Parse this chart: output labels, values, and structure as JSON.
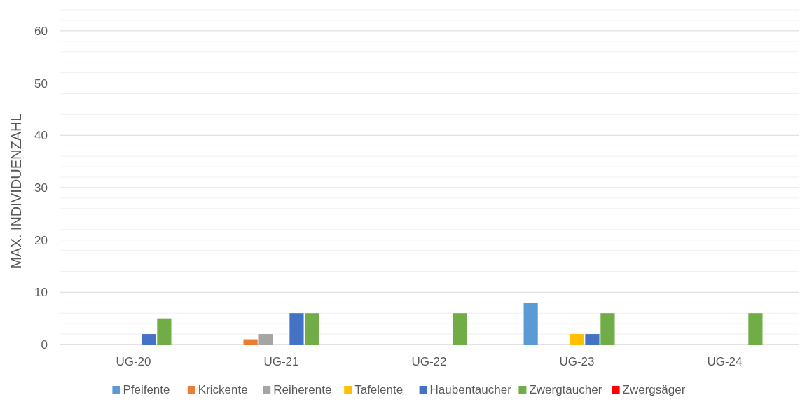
{
  "chart_data": {
    "type": "bar",
    "ylabel": "MAX. INDIVIDUENZAHL",
    "categories": [
      "UG-20",
      "UG-21",
      "UG-22",
      "UG-23",
      "UG-24"
    ],
    "series": [
      {
        "name": "Pfeifente",
        "color": "#5b9bd5",
        "values": [
          0,
          0,
          0,
          8,
          0
        ]
      },
      {
        "name": "Krickente",
        "color": "#ed7d31",
        "values": [
          0,
          1,
          0,
          0,
          0
        ]
      },
      {
        "name": "Reiherente",
        "color": "#a5a5a5",
        "values": [
          0,
          2,
          0,
          0,
          0
        ]
      },
      {
        "name": "Tafelente",
        "color": "#ffc000",
        "values": [
          0,
          0,
          0,
          2,
          0
        ]
      },
      {
        "name": "Haubentaucher",
        "color": "#4472c4",
        "values": [
          2,
          6,
          0,
          2,
          0
        ]
      },
      {
        "name": "Zwergtaucher",
        "color": "#70ad47",
        "values": [
          5,
          6,
          6,
          6,
          6
        ]
      },
      {
        "name": "Zwergsäger",
        "color": "#ff0000",
        "values": [
          0,
          0,
          0,
          0,
          0
        ]
      }
    ],
    "ylim": [
      0,
      64
    ],
    "yticks": [
      0,
      {
        "value": 2,
        "label": null
      },
      {
        "value": 4,
        "label": null
      },
      {
        "value": 6,
        "label": null
      },
      {
        "value": 8,
        "label": null
      },
      10,
      {
        "value": 12,
        "label": null
      },
      {
        "value": 14,
        "label": null
      },
      {
        "value": 16,
        "label": null
      },
      {
        "value": 18,
        "label": null
      },
      20,
      {
        "value": 22,
        "label": null
      },
      {
        "value": 24,
        "label": null
      },
      {
        "value": 26,
        "label": null
      },
      {
        "value": 28,
        "label": null
      },
      30,
      {
        "value": 32,
        "label": null
      },
      {
        "value": 34,
        "label": null
      },
      {
        "value": 36,
        "label": null
      },
      {
        "value": 38,
        "label": null
      },
      40,
      {
        "value": 42,
        "label": null
      },
      {
        "value": 44,
        "label": null
      },
      {
        "value": 46,
        "label": null
      },
      {
        "value": 48,
        "label": null
      },
      50,
      {
        "value": 52,
        "label": null
      },
      {
        "value": 54,
        "label": null
      },
      {
        "value": 56,
        "label": null
      },
      {
        "value": 58,
        "label": null
      },
      60,
      {
        "value": 62,
        "label": null
      },
      {
        "value": 64,
        "label": null
      }
    ],
    "grid": "y",
    "legend": "bottom"
  }
}
